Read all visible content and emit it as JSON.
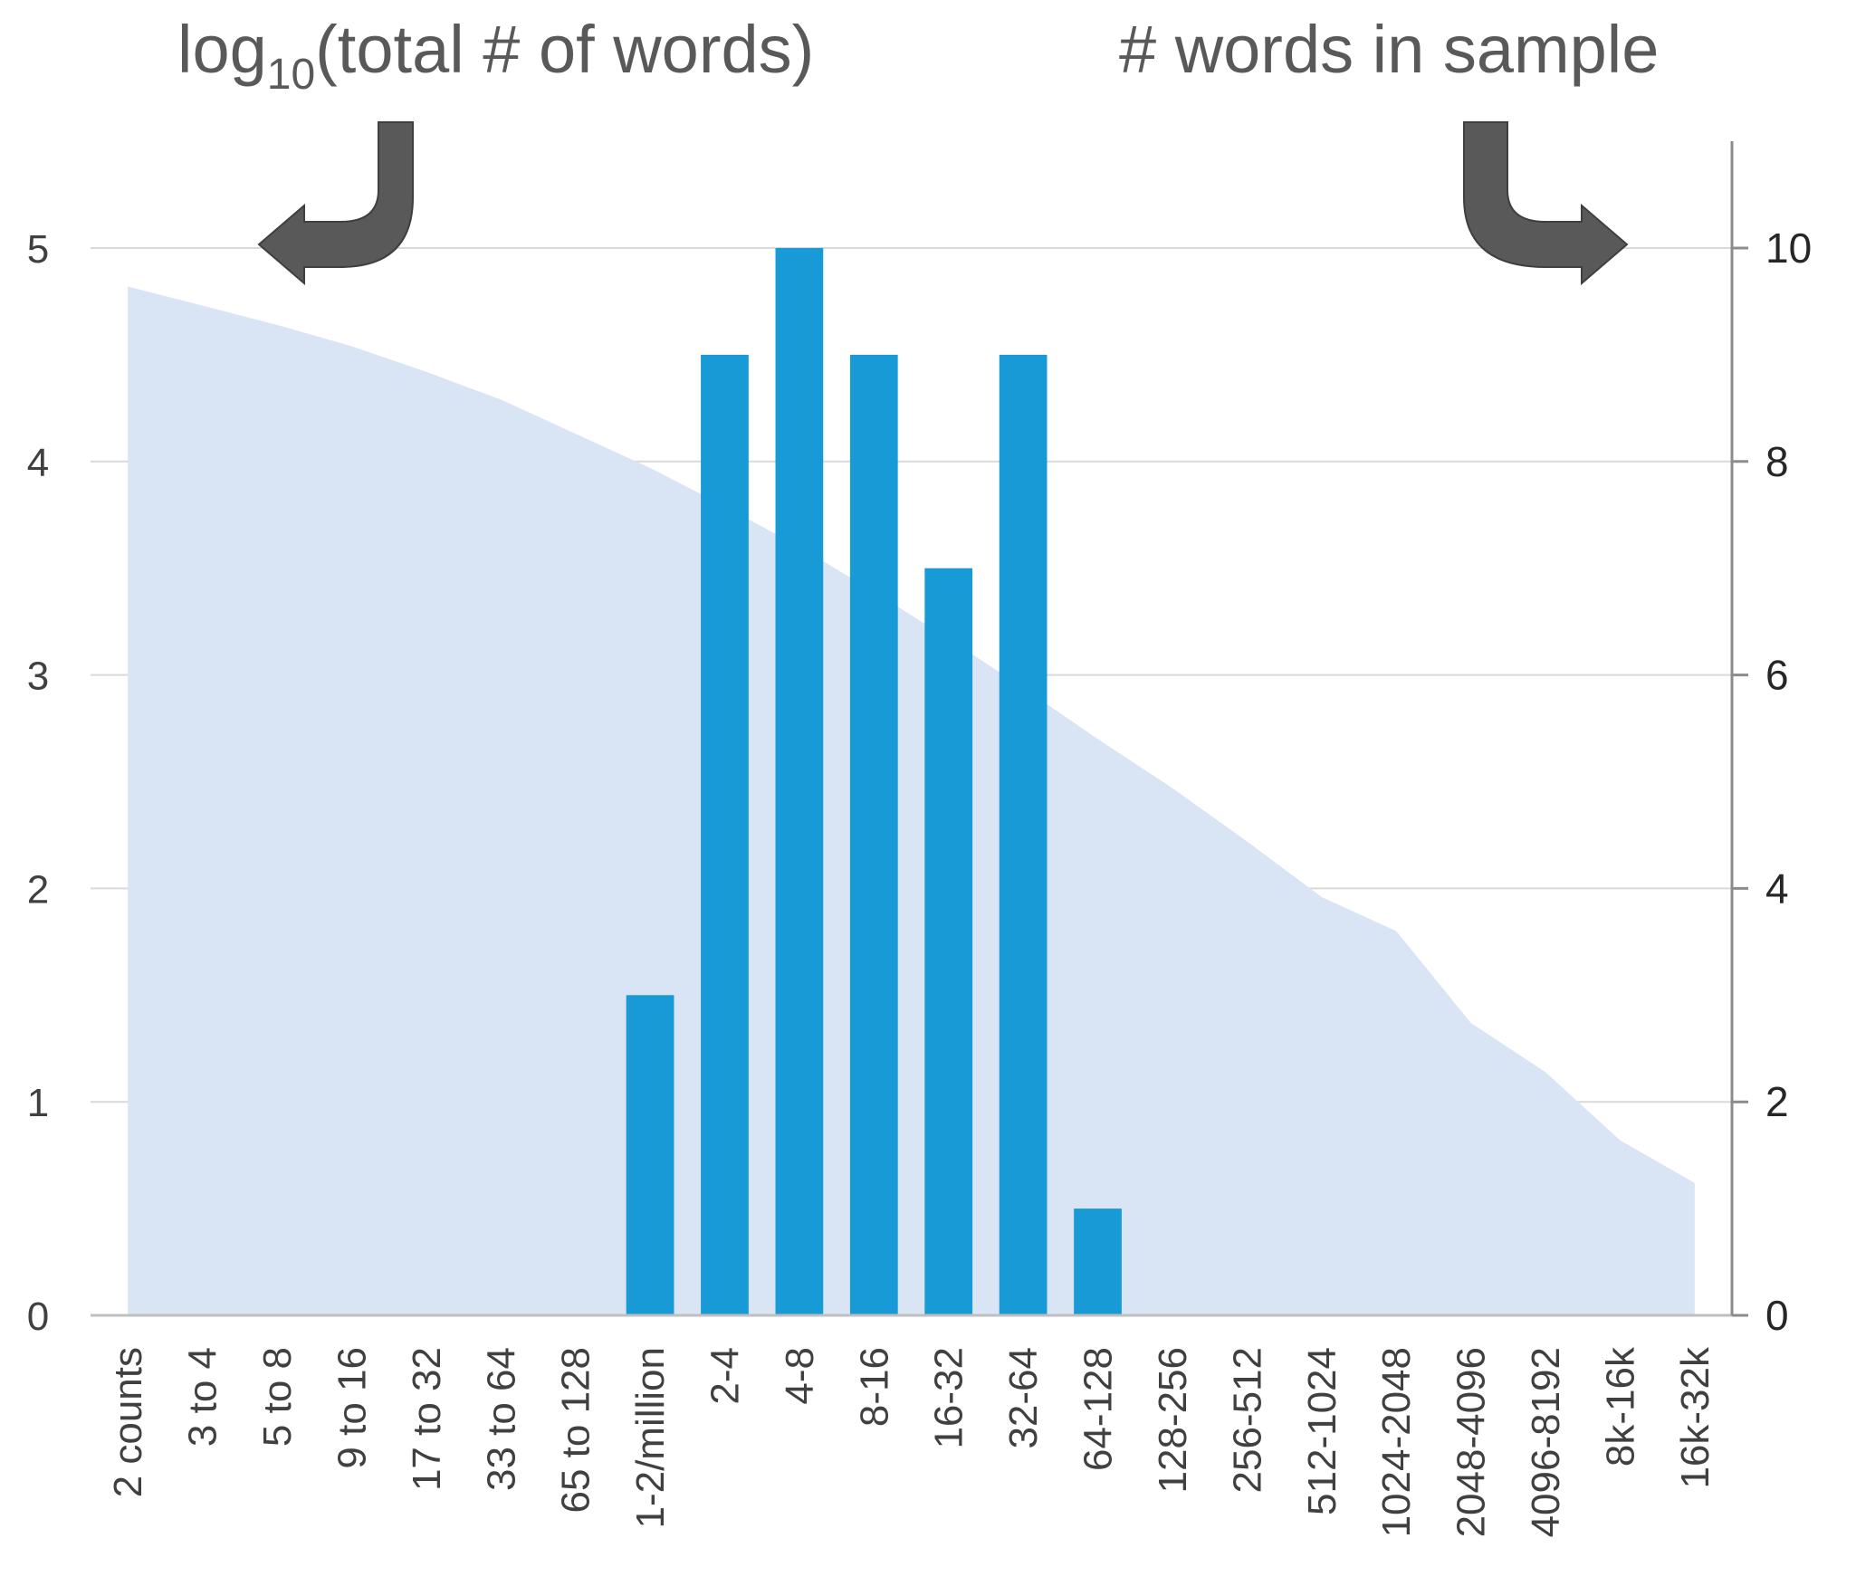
{
  "chart_data": {
    "type": "bar",
    "titles": {
      "left_axis_title_main": "log",
      "left_axis_title_sub": "10",
      "left_axis_title_rest": "(total # of words)",
      "right_axis_title": "# words in sample"
    },
    "categories": [
      "2 counts",
      "3 to 4",
      "5 to 8",
      "9 to 16",
      "17 to 32",
      "33 to 64",
      "65 to 128",
      "1-2/million",
      "2-4",
      "4-8",
      "8-16",
      "16-32",
      "32-64",
      "64-128",
      "128-256",
      "256-512",
      "512-1024",
      "1024-2048",
      "2048-4096",
      "4096-8192",
      "8k-16k",
      "16k-32k"
    ],
    "area_series": {
      "axis": "left",
      "color": "#d9e4f5",
      "values": [
        4.82,
        4.73,
        4.64,
        4.54,
        4.42,
        4.29,
        4.13,
        3.97,
        3.79,
        3.6,
        3.39,
        3.17,
        2.94,
        2.7,
        2.47,
        2.22,
        1.96,
        1.8,
        1.37,
        1.14,
        0.82,
        0.62
      ]
    },
    "bar_series": {
      "axis": "right",
      "color": "#189ad6",
      "values": [
        0,
        0,
        0,
        0,
        0,
        0,
        0,
        3,
        9,
        10,
        9,
        7,
        9,
        1,
        0,
        0,
        0,
        0,
        0,
        0,
        0,
        0
      ]
    },
    "left_axis": {
      "ylim": [
        0,
        5
      ],
      "ticks": [
        "0",
        "1",
        "2",
        "3",
        "4",
        "5"
      ]
    },
    "right_axis": {
      "ylim": [
        0,
        10
      ],
      "ticks": [
        "0",
        "2",
        "4",
        "6",
        "8",
        "10"
      ]
    },
    "grid": true,
    "arrow_color": "#595959"
  }
}
